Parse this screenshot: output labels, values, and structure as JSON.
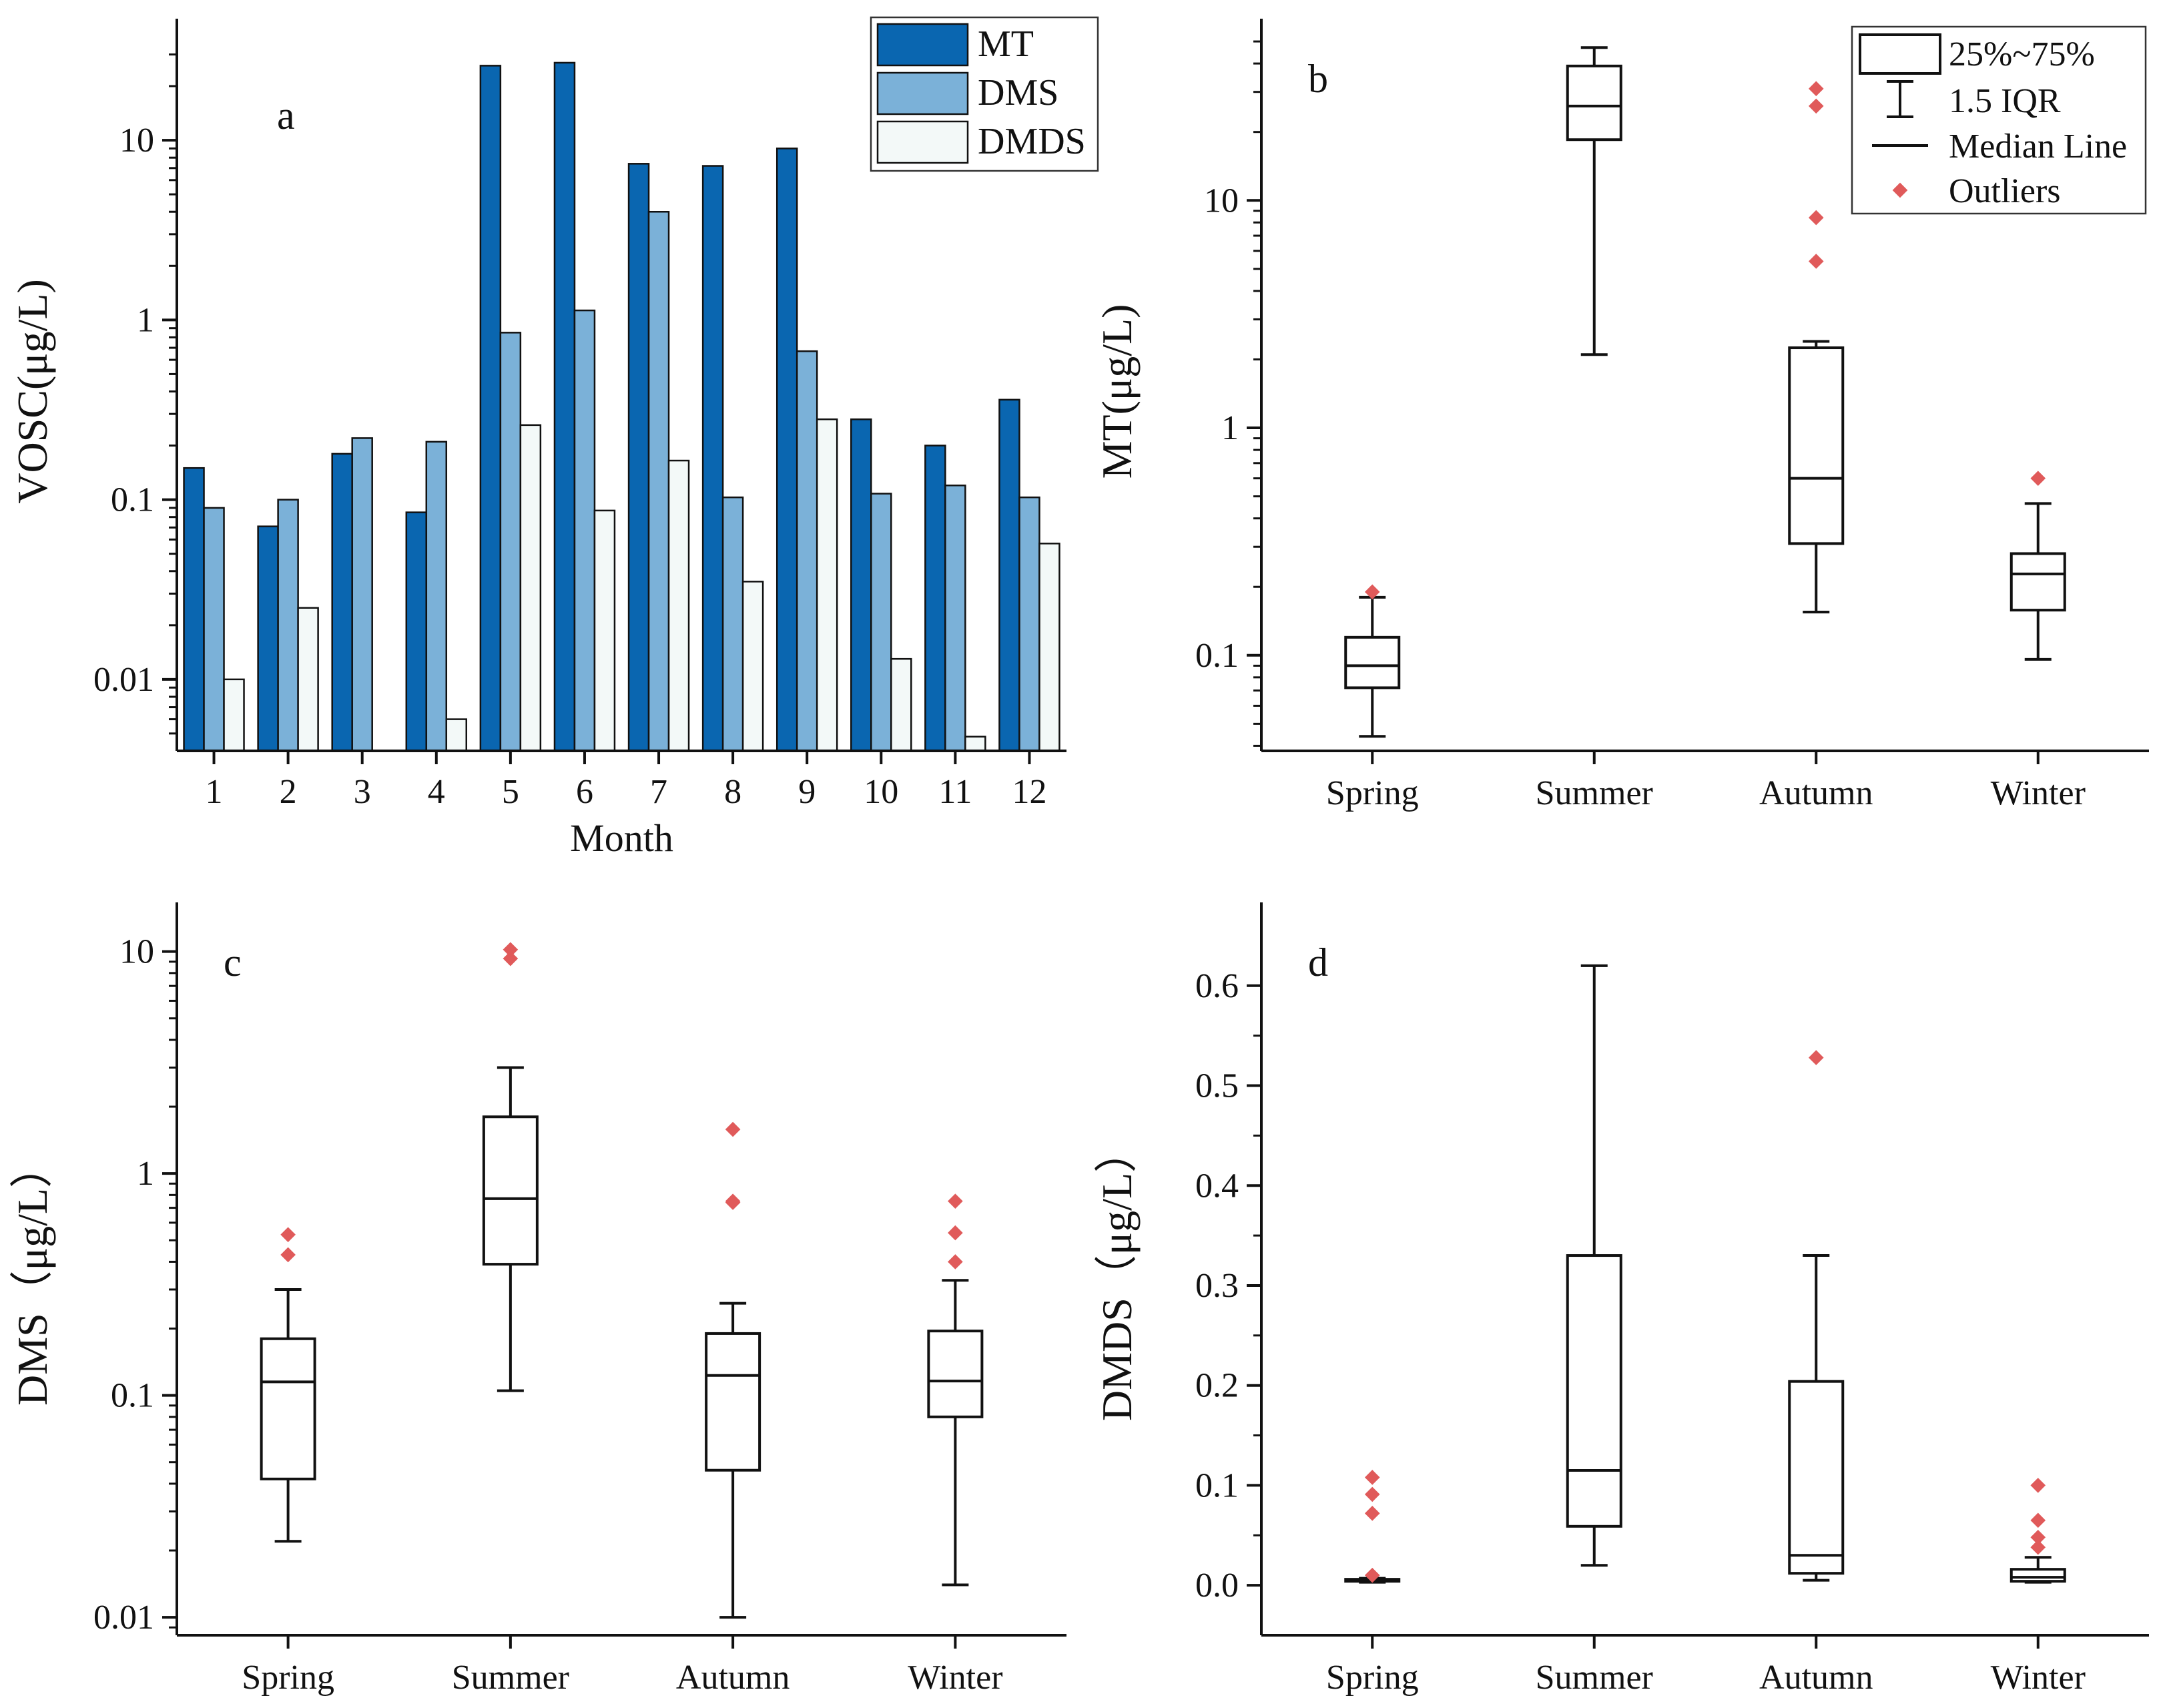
{
  "colors": {
    "mt": "#0a66b0",
    "dms": "#7bb1d8",
    "dmds": "#f3f9f8",
    "outlier": "#e05a5a",
    "axis": "#111111"
  },
  "chart_data": [
    {
      "id": "a",
      "type": "bar",
      "panel_label": "a",
      "xlabel": "Month",
      "ylabel": "VOSC(μg/L)",
      "yscale": "log",
      "ylim": [
        0.004,
        40
      ],
      "yticks": [
        {
          "value": 0.01,
          "label": "0.01"
        },
        {
          "value": 0.1,
          "label": "0.1"
        },
        {
          "value": 1,
          "label": "1"
        },
        {
          "value": 10,
          "label": "10"
        }
      ],
      "categories": [
        "1",
        "2",
        "3",
        "4",
        "5",
        "6",
        "7",
        "8",
        "9",
        "10",
        "11",
        "12"
      ],
      "series": [
        {
          "name": "MT",
          "color_key": "mt",
          "values": [
            0.15,
            0.071,
            0.18,
            0.085,
            26,
            27,
            7.4,
            7.2,
            9.0,
            0.28,
            0.2,
            0.36
          ]
        },
        {
          "name": "DMS",
          "color_key": "dms",
          "values": [
            0.09,
            0.1,
            0.22,
            0.21,
            0.85,
            1.13,
            4.0,
            0.103,
            0.67,
            0.108,
            0.12,
            0.103
          ]
        },
        {
          "name": "DMDS",
          "color_key": "dmds",
          "values": [
            0.01,
            0.025,
            null,
            0.006,
            0.26,
            0.087,
            0.165,
            0.035,
            0.28,
            0.013,
            0.0048,
            0.057
          ]
        }
      ],
      "legend": [
        "MT",
        "DMS",
        "DMDS"
      ],
      "legend_position": "top-right"
    },
    {
      "id": "b",
      "type": "box",
      "panel_label": "b",
      "ylabel": "MT(μg/L)",
      "yscale": "log",
      "ylim": [
        0.038,
        55
      ],
      "yticks": [
        {
          "value": 0.1,
          "label": "0.1"
        },
        {
          "value": 1,
          "label": "1"
        },
        {
          "value": 10,
          "label": "10"
        }
      ],
      "categories": [
        "Spring",
        "Summer",
        "Autumn",
        "Winter"
      ],
      "boxes": [
        {
          "whisker_low": 0.044,
          "q1": 0.072,
          "median": 0.09,
          "q3": 0.12,
          "whisker_high": 0.18,
          "outliers": [
            0.19
          ]
        },
        {
          "whisker_low": 2.1,
          "q1": 18.5,
          "median": 26,
          "q3": 39,
          "whisker_high": 47,
          "outliers": []
        },
        {
          "whisker_low": 0.155,
          "q1": 0.31,
          "median": 0.6,
          "q3": 2.25,
          "whisker_high": 2.4,
          "outliers": [
            5.4,
            8.4,
            26,
            31
          ]
        },
        {
          "whisker_low": 0.096,
          "q1": 0.158,
          "median": 0.228,
          "q3": 0.28,
          "whisker_high": 0.465,
          "outliers": [
            0.6
          ]
        }
      ],
      "legend": {
        "box": "25%~75%",
        "whisker": "1.5 IQR",
        "median": "Median Line",
        "outliers": "Outliers"
      },
      "legend_position": "top-right"
    },
    {
      "id": "c",
      "type": "box",
      "panel_label": "c",
      "ylabel": "DMS（μg/L）",
      "yscale": "log",
      "ylim": [
        0.0083,
        14.5
      ],
      "yticks": [
        {
          "value": 0.01,
          "label": "0.01"
        },
        {
          "value": 0.1,
          "label": "0.1"
        },
        {
          "value": 1,
          "label": "1"
        },
        {
          "value": 10,
          "label": "10"
        }
      ],
      "categories": [
        "Spring",
        "Summer",
        "Autumn",
        "Winter"
      ],
      "boxes": [
        {
          "whisker_low": 0.022,
          "q1": 0.042,
          "median": 0.115,
          "q3": 0.18,
          "whisker_high": 0.3,
          "outliers": [
            0.43,
            0.53
          ]
        },
        {
          "whisker_low": 0.105,
          "q1": 0.39,
          "median": 0.77,
          "q3": 1.8,
          "whisker_high": 3.0,
          "outliers": [
            9.3,
            10.2
          ]
        },
        {
          "whisker_low": 0.01,
          "q1": 0.046,
          "median": 0.123,
          "q3": 0.19,
          "whisker_high": 0.26,
          "outliers": [
            0.74,
            0.75,
            1.58
          ]
        },
        {
          "whisker_low": 0.014,
          "q1": 0.08,
          "median": 0.116,
          "q3": 0.195,
          "whisker_high": 0.33,
          "outliers": [
            0.4,
            0.54,
            0.75
          ]
        }
      ]
    },
    {
      "id": "d",
      "type": "box",
      "panel_label": "d",
      "ylabel": "DMDS（μg/L）",
      "yscale": "linear",
      "ylim": [
        -0.05,
        0.67
      ],
      "yticks": [
        {
          "value": 0.0,
          "label": "0.0"
        },
        {
          "value": 0.1,
          "label": "0.1"
        },
        {
          "value": 0.2,
          "label": "0.2"
        },
        {
          "value": 0.3,
          "label": "0.3"
        },
        {
          "value": 0.4,
          "label": "0.4"
        },
        {
          "value": 0.5,
          "label": "0.5"
        },
        {
          "value": 0.6,
          "label": "0.6"
        }
      ],
      "categories": [
        "Spring",
        "Summer",
        "Autumn",
        "Winter"
      ],
      "boxes": [
        {
          "whisker_low": 0.003,
          "q1": 0.004,
          "median": 0.005,
          "q3": 0.006,
          "whisker_high": 0.007,
          "outliers": [
            0.01,
            0.072,
            0.091,
            0.108
          ]
        },
        {
          "whisker_low": 0.02,
          "q1": 0.059,
          "median": 0.115,
          "q3": 0.33,
          "whisker_high": 0.62,
          "outliers": []
        },
        {
          "whisker_low": 0.005,
          "q1": 0.012,
          "median": 0.03,
          "q3": 0.204,
          "whisker_high": 0.33,
          "outliers": [
            0.528
          ]
        },
        {
          "whisker_low": 0.003,
          "q1": 0.004,
          "median": 0.008,
          "q3": 0.016,
          "whisker_high": 0.028,
          "outliers": [
            0.038,
            0.048,
            0.065,
            0.1
          ]
        }
      ]
    }
  ]
}
